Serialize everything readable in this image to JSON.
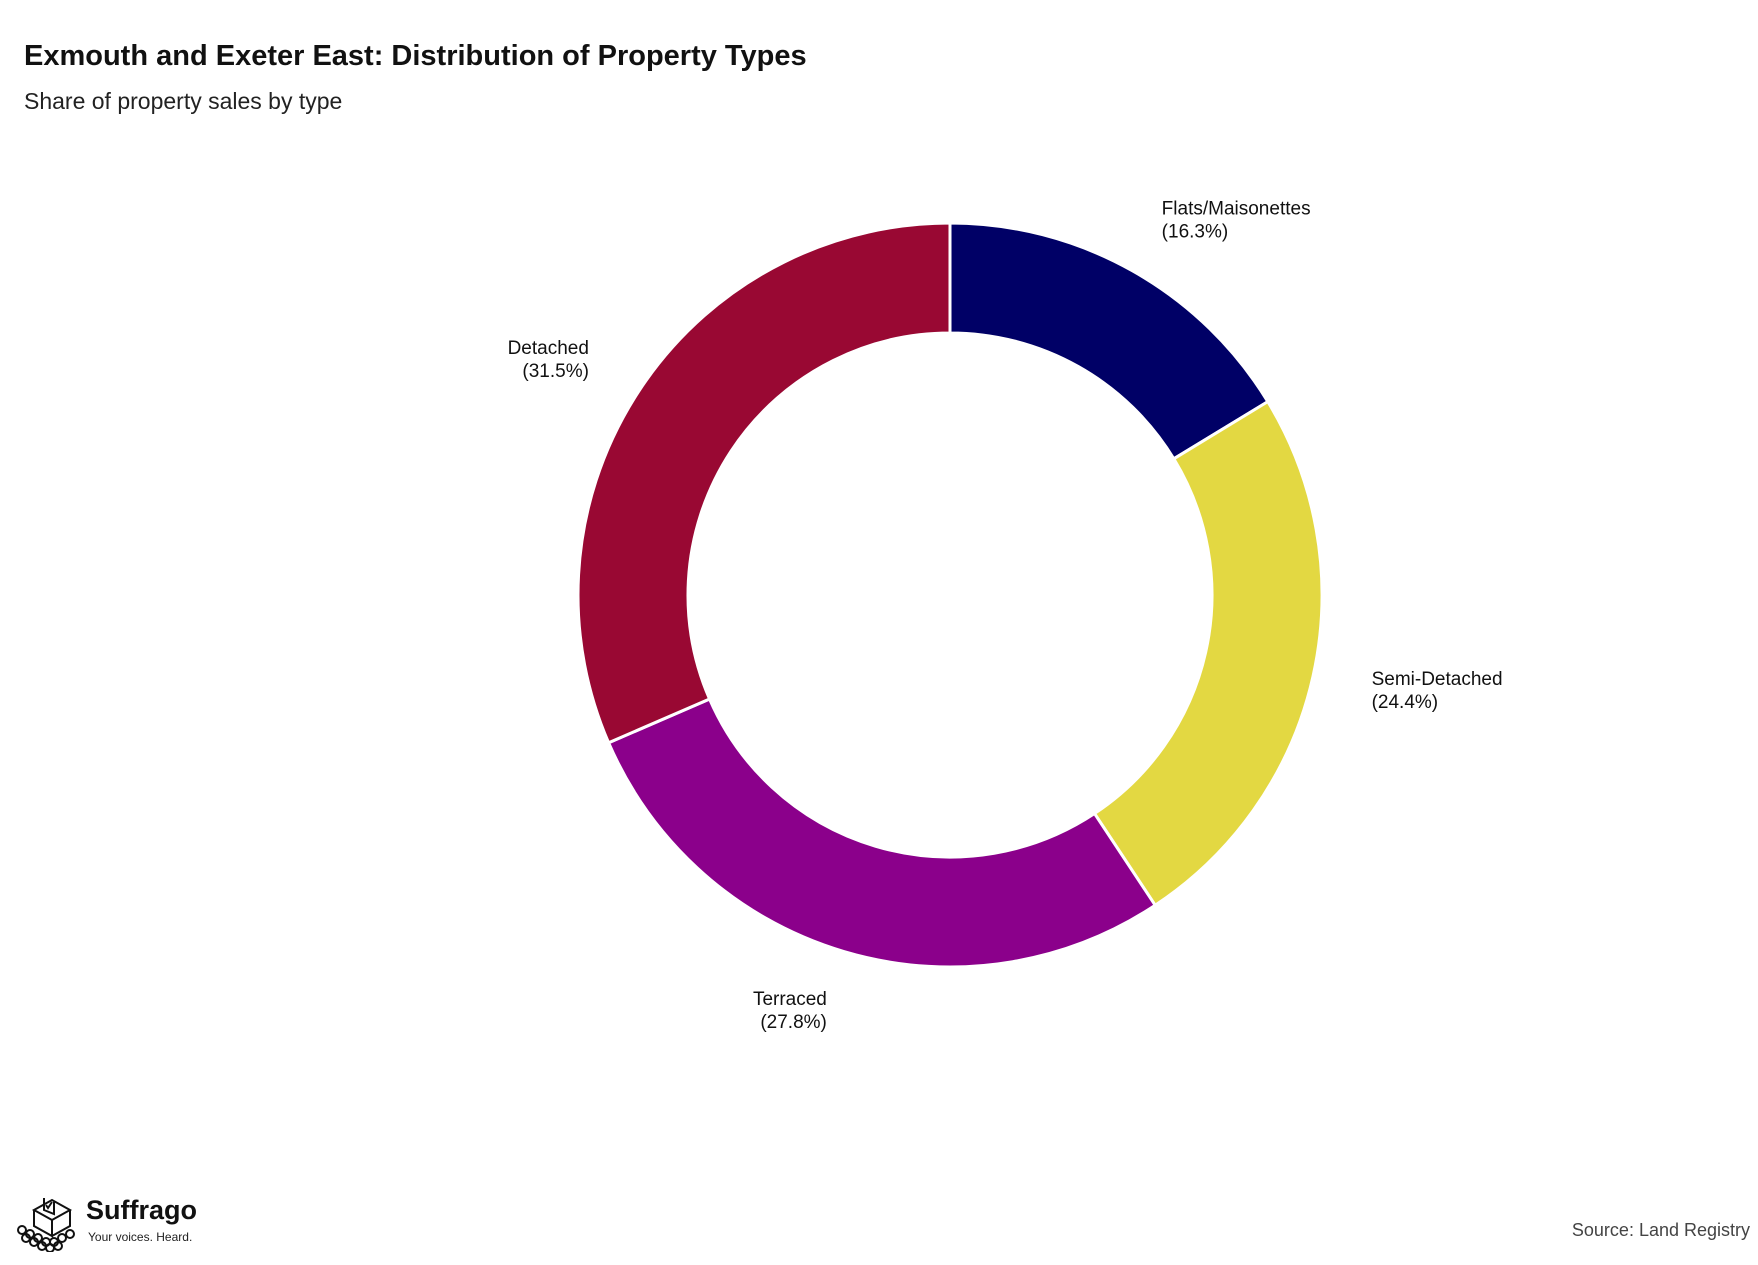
{
  "title": "Exmouth and Exeter East: Distribution of Property Types",
  "subtitle": "Share of property sales by type",
  "source": "Source: Land Registry",
  "brand": {
    "name": "Suffrago",
    "tagline": "Your voices. Heard.",
    "icon": "ballot-box-crowd-logo"
  },
  "chart_data": {
    "type": "pie",
    "variant": "donut",
    "start_angle_deg": 0,
    "direction": "clockwise",
    "slices": [
      {
        "label": "Flats/Maisonettes",
        "value": 16.3,
        "display": "(16.3%)",
        "color": "#000066"
      },
      {
        "label": "Semi-Detached",
        "value": 24.4,
        "display": "(24.4%)",
        "color": "#E3D842"
      },
      {
        "label": "Terraced",
        "value": 27.8,
        "display": "(27.8%)",
        "color": "#8B008B"
      },
      {
        "label": "Detached",
        "value": 31.5,
        "display": "(31.5%)",
        "color": "#990833"
      }
    ]
  }
}
